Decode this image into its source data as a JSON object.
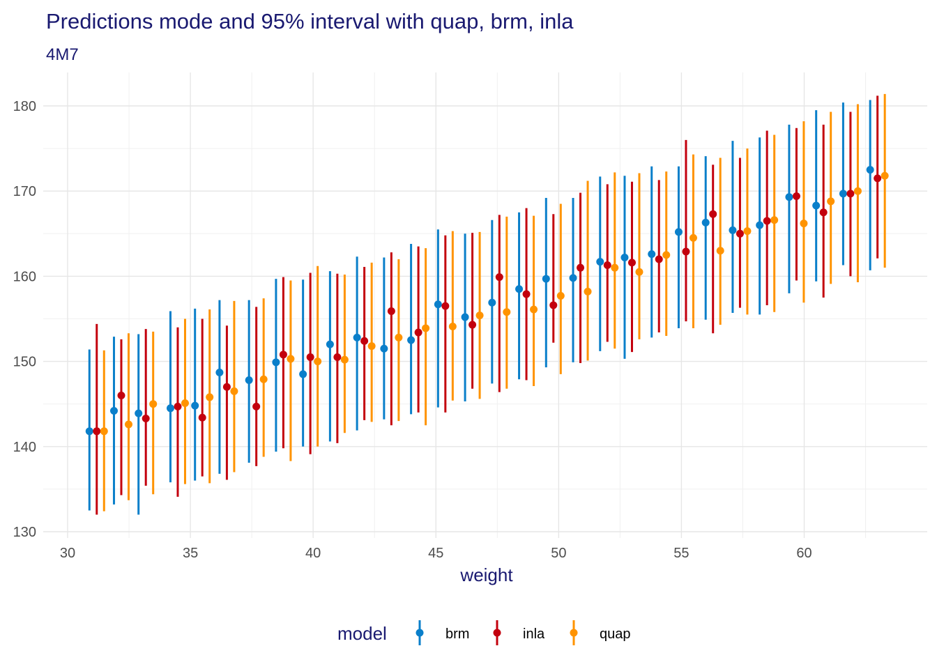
{
  "chart_data": {
    "type": "scatter",
    "title": "Predictions mode and 95% interval with quap, brm, inla",
    "subtitle": "4M7",
    "xlabel": "weight",
    "ylabel": "",
    "xlim": [
      29.6,
      64.9
    ],
    "ylim": [
      130,
      183.5
    ],
    "x_ticks": [
      "30",
      "35",
      "40",
      "45",
      "50",
      "55",
      "60"
    ],
    "y_ticks": [
      "130",
      "140",
      "150",
      "160",
      "170",
      "180"
    ],
    "grid": true,
    "legend": {
      "title": "model",
      "position": "bottom"
    },
    "x": [
      31.2,
      32.2,
      33.2,
      34.5,
      35.5,
      36.5,
      37.7,
      38.8,
      39.9,
      41.0,
      42.1,
      43.2,
      44.3,
      45.4,
      46.5,
      47.6,
      48.7,
      49.8,
      50.9,
      52.0,
      53.0,
      54.1,
      55.2,
      56.3,
      57.4,
      58.5,
      59.7,
      60.8,
      61.9,
      63.0
    ],
    "series": [
      {
        "name": "brm",
        "color": "#0a7fca",
        "mode": [
          141.8,
          144.2,
          143.9,
          144.5,
          144.8,
          148.7,
          147.8,
          149.9,
          148.5,
          152.0,
          152.8,
          151.5,
          152.5,
          156.7,
          155.2,
          156.9,
          158.5,
          159.7,
          159.8,
          161.7,
          162.2,
          162.6,
          165.2,
          166.3,
          165.4,
          166.0,
          169.3,
          168.3,
          169.7,
          172.5
        ],
        "lower": [
          132.5,
          133.2,
          132.0,
          135.8,
          136.0,
          136.8,
          138.1,
          139.4,
          140.0,
          140.6,
          141.9,
          143.2,
          143.8,
          144.6,
          145.3,
          147.4,
          147.9,
          149.3,
          149.9,
          151.2,
          150.3,
          152.8,
          153.9,
          154.9,
          155.7,
          155.5,
          158.0,
          159.4,
          161.3,
          160.7
        ],
        "upper": [
          151.4,
          152.9,
          153.2,
          155.9,
          156.2,
          157.2,
          157.2,
          159.7,
          159.6,
          160.6,
          162.3,
          162.2,
          163.8,
          165.5,
          165.0,
          166.6,
          167.5,
          169.2,
          169.2,
          171.7,
          171.8,
          172.9,
          172.9,
          174.1,
          175.9,
          176.3,
          177.8,
          179.5,
          180.4,
          180.7
        ]
      },
      {
        "name": "inla",
        "color": "#c3000d",
        "mode": [
          141.8,
          146.0,
          143.3,
          144.7,
          143.4,
          147.0,
          144.7,
          150.8,
          150.5,
          150.5,
          152.4,
          155.9,
          153.4,
          156.5,
          154.3,
          159.9,
          157.9,
          156.6,
          161.0,
          161.3,
          161.6,
          162.0,
          162.9,
          167.3,
          165.0,
          166.5,
          169.4,
          167.5,
          169.7,
          171.5
        ],
        "lower": [
          132.0,
          134.3,
          135.4,
          134.1,
          136.5,
          136.1,
          137.7,
          139.8,
          139.1,
          140.4,
          143.1,
          142.5,
          144.0,
          144.0,
          146.8,
          146.4,
          147.8,
          152.2,
          149.8,
          152.3,
          151.1,
          153.4,
          154.7,
          153.3,
          156.3,
          156.6,
          159.5,
          157.5,
          160.0,
          162.1
        ],
        "upper": [
          154.4,
          152.6,
          153.8,
          154.0,
          155.0,
          154.2,
          156.4,
          159.9,
          160.4,
          160.3,
          161.1,
          162.8,
          163.5,
          164.8,
          165.1,
          167.2,
          168.0,
          167.3,
          169.8,
          170.8,
          171.1,
          171.3,
          176.0,
          173.1,
          173.9,
          177.1,
          177.4,
          177.8,
          179.3,
          181.2
        ]
      },
      {
        "name": "quap",
        "color": "#ff9300",
        "mode": [
          141.8,
          142.6,
          145.0,
          145.1,
          145.8,
          146.5,
          147.9,
          150.3,
          150.0,
          150.2,
          151.8,
          152.8,
          153.9,
          154.1,
          155.4,
          155.8,
          156.1,
          157.7,
          158.2,
          161.0,
          160.5,
          162.5,
          164.5,
          163.0,
          165.3,
          166.6,
          166.2,
          168.8,
          170.0,
          171.8
        ],
        "lower": [
          132.4,
          133.7,
          134.4,
          135.6,
          135.7,
          137.0,
          138.8,
          138.3,
          140.0,
          141.6,
          142.9,
          143.0,
          142.5,
          145.4,
          145.6,
          146.8,
          147.1,
          148.5,
          150.1,
          151.5,
          152.6,
          153.0,
          153.9,
          154.3,
          155.5,
          155.8,
          156.9,
          159.1,
          159.3,
          161.0
        ],
        "upper": [
          151.3,
          153.3,
          153.5,
          155.0,
          156.1,
          157.1,
          157.4,
          159.5,
          161.2,
          160.2,
          161.6,
          162.0,
          163.3,
          165.3,
          165.2,
          167.0,
          167.1,
          168.5,
          171.2,
          172.2,
          172.1,
          172.3,
          174.3,
          173.9,
          175.0,
          176.6,
          178.2,
          179.3,
          180.2,
          181.4
        ]
      }
    ]
  }
}
